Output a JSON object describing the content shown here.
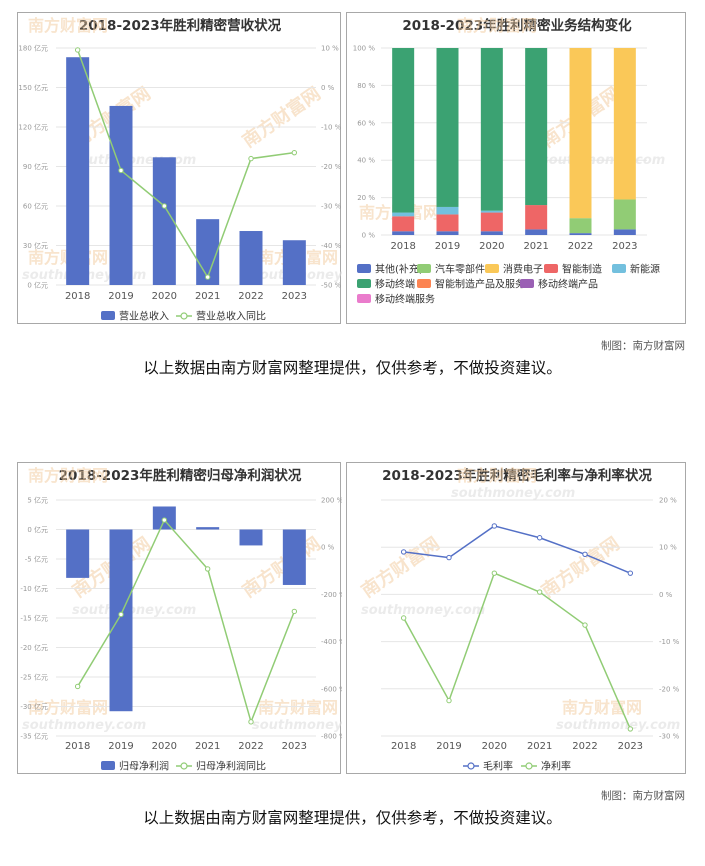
{
  "colors": {
    "blue": "#5470c6",
    "green": "#91cc75",
    "yellow": "#fac858",
    "red": "#ee6666",
    "teal": "#73c0de",
    "dgreen": "#3ba272",
    "orange": "#fc8452",
    "purple": "#9a60b4",
    "pink": "#ea7ccc"
  },
  "watermark": {
    "cn": "南方财富网",
    "en": "southmoney.com"
  },
  "source_label": "制图：南方财富网",
  "footnote": "以上数据由南方财富网整理提供，仅供参考，不做投资建议。",
  "chart_data": [
    {
      "type": "bar",
      "title": "2018-2023年胜利精密营收状况",
      "categories": [
        "2018",
        "2019",
        "2020",
        "2021",
        "2022",
        "2023"
      ],
      "series": [
        {
          "name": "营业总收入",
          "type": "bar",
          "axis": "left",
          "values": [
            173,
            136,
            97,
            50,
            41,
            34
          ]
        },
        {
          "name": "营业总收入同比",
          "type": "line",
          "axis": "right",
          "values": [
            9.5,
            -21,
            -30,
            -48,
            -18,
            -16.5
          ]
        }
      ],
      "yleft": {
        "min": 0,
        "max": 180,
        "step": 30,
        "ticks": [
          "0 亿元",
          "30 亿元",
          "60 亿元",
          "90 亿元",
          "120 亿元",
          "150 亿元",
          "180 亿元"
        ]
      },
      "yright": {
        "min": -50,
        "max": 10,
        "step": 10,
        "ticks": [
          "-50 %",
          "-40 %",
          "-30 %",
          "-20 %",
          "-10 %",
          "0 %",
          "10 %"
        ]
      },
      "legend": "bottom"
    },
    {
      "type": "bar",
      "stacked": true,
      "title": "2018-2023年胜利精密业务结构变化",
      "categories": [
        "2018",
        "2019",
        "2020",
        "2021",
        "2022",
        "2023"
      ],
      "series": [
        {
          "name": "其他(补充)",
          "color": "blue",
          "values": [
            2,
            2,
            2,
            3,
            1,
            3
          ]
        },
        {
          "name": "汽车零部件",
          "color": "green",
          "values": [
            0,
            0,
            0,
            0,
            8,
            16
          ]
        },
        {
          "name": "消费电子",
          "color": "yellow",
          "values": [
            0,
            0,
            0,
            0,
            91,
            81
          ]
        },
        {
          "name": "智能制造",
          "color": "red",
          "values": [
            8,
            9,
            10,
            13,
            0,
            0
          ]
        },
        {
          "name": "新能源",
          "color": "teal",
          "values": [
            2,
            4,
            1,
            0,
            0,
            0
          ]
        },
        {
          "name": "移动终端",
          "color": "dgreen",
          "values": [
            88,
            85,
            87,
            84,
            0,
            0
          ]
        },
        {
          "name": "智能制造产品及服务",
          "color": "orange",
          "values": [
            0,
            0,
            0,
            0,
            0,
            0
          ]
        },
        {
          "name": "移动终端产品",
          "color": "purple",
          "values": [
            0,
            0,
            0,
            0,
            0,
            0
          ]
        },
        {
          "name": "移动终端服务",
          "color": "pink",
          "values": [
            0,
            0,
            0,
            0,
            0,
            0
          ]
        }
      ],
      "yaxis": {
        "min": 0,
        "max": 100,
        "step": 20,
        "ticks": [
          "0 %",
          "20 %",
          "40 %",
          "60 %",
          "80 %",
          "100 %"
        ]
      },
      "legend": "bottom"
    },
    {
      "type": "bar",
      "title": "2018-2023年胜利精密归母净利润状况",
      "categories": [
        "2018",
        "2019",
        "2020",
        "2021",
        "2022",
        "2023"
      ],
      "series": [
        {
          "name": "归母净利润",
          "type": "bar",
          "axis": "left",
          "values": [
            -8.2,
            -30.8,
            3.9,
            0.4,
            -2.7,
            -9.4
          ]
        },
        {
          "name": "归母净利润同比",
          "type": "line",
          "axis": "right",
          "values": [
            -590,
            -285,
            115,
            -92,
            -740,
            -272
          ]
        }
      ],
      "yleft": {
        "min": -35,
        "max": 5,
        "step": 5,
        "ticks": [
          "-35 亿元",
          "-30 亿元",
          "-25 亿元",
          "-20 亿元",
          "-15 亿元",
          "-10 亿元",
          "-5 亿元",
          "0 亿元",
          "5 亿元"
        ]
      },
      "yright": {
        "min": -800,
        "max": 200,
        "step": 200,
        "ticks": [
          "-800 %",
          "-600 %",
          "-400 %",
          "-200 %",
          "0 %",
          "200 %"
        ]
      },
      "legend": "bottom"
    },
    {
      "type": "line",
      "title": "2018-2023年胜利精密毛利率与净利率状况",
      "categories": [
        "2018",
        "2019",
        "2020",
        "2021",
        "2022",
        "2023"
      ],
      "series": [
        {
          "name": "毛利率",
          "color": "blue",
          "values": [
            9,
            7.8,
            14.5,
            12,
            8.5,
            4.5
          ]
        },
        {
          "name": "净利率",
          "color": "green",
          "values": [
            -5,
            -22.5,
            4.5,
            0.5,
            -6.5,
            -28.5
          ]
        }
      ],
      "yaxis": {
        "min": -30,
        "max": 20,
        "step": 10,
        "ticks": [
          "-30 %",
          "-20 %",
          "-10 %",
          "0 %",
          "10 %",
          "20 %"
        ]
      },
      "legend": "bottom"
    }
  ]
}
